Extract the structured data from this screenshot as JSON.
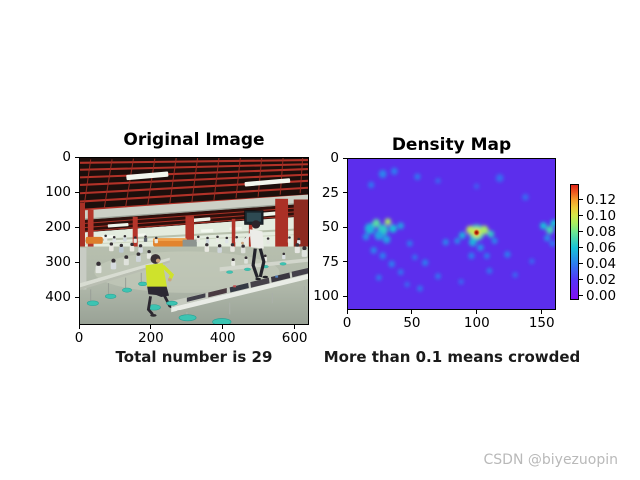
{
  "figure": {
    "background": "#ffffff"
  },
  "watermark": {
    "text": "CSDN @biyezuopin",
    "color": "#b9b9b9"
  },
  "chart_data": [
    {
      "type": "image",
      "title": "Original Image",
      "xlabel": "Total number is 29",
      "total_count": 29,
      "xticks": [
        0,
        200,
        400,
        600
      ],
      "yticks": [
        0,
        100,
        200,
        300,
        400
      ],
      "xlim": [
        0,
        640
      ],
      "ylim": [
        0,
        480
      ],
      "content": "Crowded canteen: red lattice ceiling with fluorescent lights, gray concrete beam, food counters along a bright back wall, red pillars, rows of people seated at long tables with teal stools, person in yellow shirt seated at left foreground, person in white shirt walking at center-right, long foreground table covered with dark prints"
    },
    {
      "type": "heatmap",
      "title": "Density Map",
      "xlabel": "More than 0.1 means crowded",
      "xticks": [
        0,
        50,
        100,
        150
      ],
      "yticks": [
        0,
        25,
        50,
        75,
        100
      ],
      "xlim": [
        0,
        161
      ],
      "ylim": [
        0,
        110
      ],
      "background_color": "#5c2eec",
      "peak": {
        "x": 100,
        "y": 54,
        "value": 0.135
      },
      "colorbar": {
        "ticks": [
          "0.00",
          "0.02",
          "0.04",
          "0.06",
          "0.08",
          "0.10",
          "0.12"
        ],
        "vmin": -0.005,
        "vmax": 0.1394,
        "gradient": [
          [
            0,
            "#7d0df5"
          ],
          [
            3,
            "#7a16f0"
          ],
          [
            17,
            "#5336f7"
          ],
          [
            31,
            "#2c7ef0"
          ],
          [
            45,
            "#17c3d7"
          ],
          [
            59,
            "#6ee88f"
          ],
          [
            66,
            "#a8ed62"
          ],
          [
            73,
            "#d3e84a"
          ],
          [
            80,
            "#eecb38"
          ],
          [
            87,
            "#f59d2b"
          ],
          [
            93,
            "#ef5f20"
          ],
          [
            100,
            "#df2418"
          ]
        ]
      },
      "hotspots": [
        [
          17,
          51,
          4,
          0.055
        ],
        [
          22,
          47,
          3,
          0.075
        ],
        [
          27,
          52,
          4,
          0.065
        ],
        [
          31,
          46,
          2.5,
          0.09
        ],
        [
          24,
          56,
          3.5,
          0.05
        ],
        [
          35,
          51,
          3,
          0.06
        ],
        [
          41,
          49,
          2.5,
          0.05
        ],
        [
          30,
          59,
          3,
          0.05
        ],
        [
          14,
          57,
          2.5,
          0.045
        ],
        [
          20,
          67,
          2.5,
          0.042
        ],
        [
          27,
          71,
          2.5,
          0.04
        ],
        [
          34,
          77,
          2.5,
          0.04
        ],
        [
          41,
          83,
          2.2,
          0.038
        ],
        [
          24,
          87,
          2.2,
          0.038
        ],
        [
          48,
          62,
          2.2,
          0.04
        ],
        [
          52,
          72,
          2,
          0.038
        ],
        [
          100,
          54,
          6,
          0.07
        ],
        [
          100,
          54,
          3.5,
          0.105
        ],
        [
          95,
          52,
          3,
          0.095
        ],
        [
          106,
          52,
          3.2,
          0.09
        ],
        [
          111,
          55,
          2.6,
          0.065
        ],
        [
          89,
          56,
          2.6,
          0.055
        ],
        [
          97,
          61,
          3,
          0.055
        ],
        [
          103,
          65,
          2.6,
          0.045
        ],
        [
          96,
          71,
          2.4,
          0.04
        ],
        [
          108,
          71,
          2.2,
          0.04
        ],
        [
          114,
          60,
          2.2,
          0.045
        ],
        [
          85,
          60,
          2.2,
          0.045
        ],
        [
          152,
          49,
          2.6,
          0.06
        ],
        [
          157,
          52,
          3,
          0.07
        ],
        [
          160,
          47,
          2.6,
          0.06
        ],
        [
          155,
          58,
          2.4,
          0.045
        ],
        [
          159,
          62,
          2.2,
          0.04
        ],
        [
          27,
          11,
          3,
          0.042
        ],
        [
          36,
          9,
          2.6,
          0.04
        ],
        [
          54,
          13,
          2.4,
          0.038
        ],
        [
          18,
          19,
          2.4,
          0.038
        ],
        [
          70,
          16,
          2,
          0.035
        ],
        [
          118,
          14,
          3,
          0.035
        ],
        [
          138,
          28,
          2.4,
          0.035
        ],
        [
          100,
          20,
          2,
          0.032
        ],
        [
          60,
          76,
          2.4,
          0.04
        ],
        [
          70,
          86,
          2.2,
          0.038
        ],
        [
          56,
          95,
          2.2,
          0.038
        ],
        [
          110,
          82,
          2.2,
          0.038
        ],
        [
          124,
          70,
          2.4,
          0.04
        ],
        [
          76,
          61,
          2.4,
          0.042
        ],
        [
          88,
          90,
          2,
          0.035
        ],
        [
          46,
          92,
          2,
          0.035
        ],
        [
          130,
          85,
          2,
          0.035
        ],
        [
          143,
          75,
          2,
          0.035
        ]
      ]
    }
  ]
}
